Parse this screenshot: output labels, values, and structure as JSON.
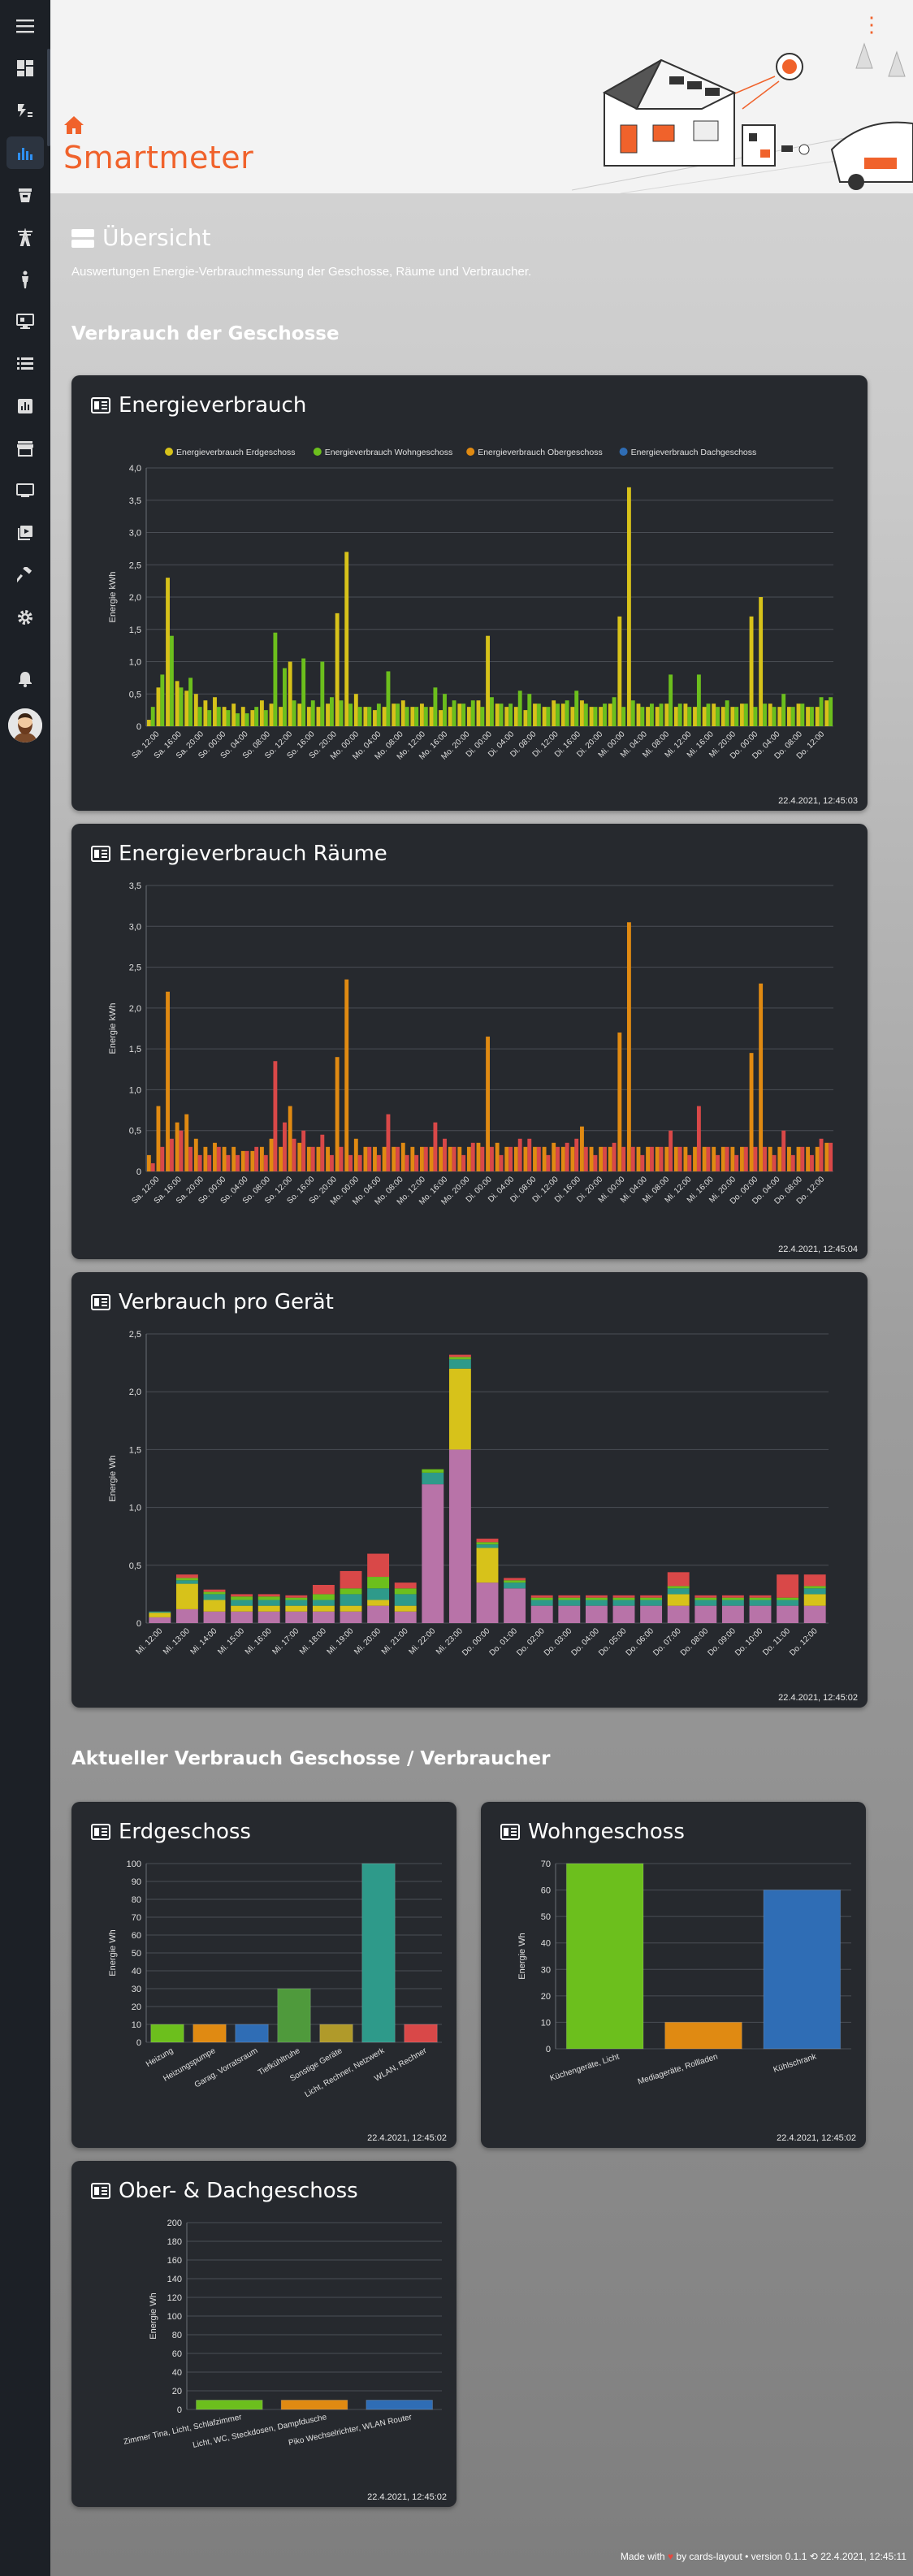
{
  "app": {
    "title": "Smartmeter"
  },
  "sidebar": {
    "items": [
      {
        "icon": "menu-icon"
      },
      {
        "icon": "dashboard-icon"
      },
      {
        "icon": "energy-flow-icon"
      },
      {
        "icon": "chart-bar-icon",
        "active": true
      },
      {
        "icon": "cup-icon"
      },
      {
        "icon": "tower-icon"
      },
      {
        "icon": "person-icon"
      },
      {
        "icon": "monitor-icon"
      },
      {
        "icon": "list-icon"
      },
      {
        "icon": "report-icon"
      },
      {
        "icon": "store-icon"
      },
      {
        "icon": "display-icon"
      },
      {
        "icon": "media-icon"
      },
      {
        "icon": "hammer-icon"
      },
      {
        "icon": "gear-icon"
      },
      {
        "icon": "bell-icon"
      }
    ]
  },
  "overview": {
    "title": "Übersicht",
    "subtitle": "Auswertungen Energie-Verbrauchmessung der Geschosse, Räume und Verbraucher."
  },
  "sections": {
    "floors": "Verbrauch der Geschosse",
    "current": "Aktueller Verbrauch Geschosse / Verbraucher"
  },
  "cards": {
    "energy": {
      "title": "Energieverbrauch",
      "timestamp": "22.4.2021, 12:45:03"
    },
    "rooms": {
      "title": "Energieverbrauch Räume",
      "timestamp": "22.4.2021, 12:45:04"
    },
    "device": {
      "title": "Verbrauch pro Gerät",
      "timestamp": "22.4.2021, 12:45:02"
    },
    "eg": {
      "title": "Erdgeschoss",
      "timestamp": "22.4.2021, 12:45:02"
    },
    "wg": {
      "title": "Wohngeschoss",
      "timestamp": "22.4.2021, 12:45:02"
    },
    "od": {
      "title": "Ober- & Dachgeschoss",
      "timestamp": "22.4.2021, 12:45:02"
    }
  },
  "footer": {
    "made_with": "Made with",
    "by": "by cards-layout • version 0.1.1",
    "timestamp": "22.4.2021, 12:45:11"
  },
  "colors": {
    "accent": "#f0622b",
    "yellow": "#d7c21a",
    "green": "#6cbf1d",
    "orange": "#e08a12",
    "blue": "#2f6db5",
    "red": "#d94848",
    "pink": "#b873a8",
    "teal": "#2e9a8a"
  },
  "chart_data": [
    {
      "id": "energy",
      "type": "bar",
      "stacked": false,
      "ylabel": "Energie kWh",
      "ylim": [
        0,
        4.0
      ],
      "yticks": [
        "0",
        "0,5",
        "1,0",
        "1,5",
        "2,0",
        "2,5",
        "3,0",
        "3,5",
        "4,0"
      ],
      "legend": [
        {
          "name": "Energieverbrauch Erdgeschoss",
          "color": "#d7c21a"
        },
        {
          "name": "Energieverbrauch Wohngeschoss",
          "color": "#6cbf1d"
        },
        {
          "name": "Energieverbrauch Obergeschoss",
          "color": "#e08a12"
        },
        {
          "name": "Energieverbrauch Dachgeschoss",
          "color": "#2f6db5"
        }
      ],
      "legend_position": "top",
      "xticks": [
        "Sa. 12:00",
        "Sa. 16:00",
        "Sa. 20:00",
        "So. 00:00",
        "So. 04:00",
        "So. 08:00",
        "So. 12:00",
        "So. 16:00",
        "So. 20:00",
        "Mo. 00:00",
        "Mo. 04:00",
        "Mo. 08:00",
        "Mo. 12:00",
        "Mo. 16:00",
        "Mo. 20:00",
        "Di. 00:00",
        "Di. 04:00",
        "Di. 08:00",
        "Di. 12:00",
        "Di. 16:00",
        "Di. 20:00",
        "Mi. 00:00",
        "Mi. 04:00",
        "Mi. 08:00",
        "Mi. 12:00",
        "Mi. 16:00",
        "Mi. 20:00",
        "Do. 00:00",
        "Do. 04:00",
        "Do. 08:00",
        "Do. 12:00"
      ],
      "series": [
        {
          "name": "Energieverbrauch Erdgeschoss",
          "values": [
            0.1,
            0.6,
            2.3,
            0.7,
            0.55,
            0.5,
            0.4,
            0.45,
            0.3,
            0.35,
            0.3,
            0.25,
            0.4,
            0.35,
            0.3,
            1.0,
            0.35,
            0.3,
            0.3,
            0.35,
            1.75,
            2.7,
            0.5,
            0.3,
            0.25,
            0.3,
            0.35,
            0.4,
            0.3,
            0.35,
            0.3,
            0.25,
            0.3,
            0.35,
            0.3,
            0.4,
            1.4,
            0.35,
            0.3,
            0.3,
            0.25,
            0.35,
            0.3,
            0.4,
            0.35,
            0.3,
            0.4,
            0.3,
            0.3,
            0.35,
            1.7,
            3.7,
            0.35,
            0.3,
            0.3,
            0.35,
            0.3,
            0.35,
            0.3,
            0.3,
            0.35,
            0.3,
            0.3,
            0.35,
            1.7,
            2.0,
            0.35,
            0.3,
            0.3,
            0.35,
            0.3,
            0.3,
            0.4
          ]
        },
        {
          "name": "Energieverbrauch Wohngeschoss",
          "values": [
            0.3,
            0.8,
            1.4,
            0.6,
            0.75,
            0.3,
            0.25,
            0.3,
            0.25,
            0.2,
            0.2,
            0.3,
            0.25,
            1.45,
            0.9,
            0.4,
            1.05,
            0.4,
            1.0,
            0.45,
            0.4,
            0.35,
            0.3,
            0.3,
            0.35,
            0.85,
            0.35,
            0.3,
            0.3,
            0.3,
            0.6,
            0.5,
            0.4,
            0.35,
            0.4,
            0.3,
            0.45,
            0.35,
            0.35,
            0.55,
            0.5,
            0.35,
            0.3,
            0.35,
            0.4,
            0.55,
            0.35,
            0.3,
            0.35,
            0.45,
            0.3,
            0.4,
            0.3,
            0.35,
            0.35,
            0.8,
            0.35,
            0.3,
            0.8,
            0.35,
            0.3,
            0.4,
            0.3,
            0.35,
            0.3,
            0.35,
            0.3,
            0.5,
            0.3,
            0.35,
            0.3,
            0.45,
            0.45
          ]
        }
      ]
    },
    {
      "id": "rooms",
      "type": "bar",
      "stacked": false,
      "ylabel": "Energie kWh",
      "ylim": [
        0,
        3.5
      ],
      "yticks": [
        "0",
        "0,5",
        "1,0",
        "1,5",
        "2,0",
        "2,5",
        "3,0",
        "3,5"
      ],
      "xticks": [
        "Sa. 12:00",
        "Sa. 16:00",
        "Sa. 20:00",
        "So. 00:00",
        "So. 04:00",
        "So. 08:00",
        "So. 12:00",
        "So. 16:00",
        "So. 20:00",
        "Mo. 00:00",
        "Mo. 04:00",
        "Mo. 08:00",
        "Mo. 12:00",
        "Mo. 16:00",
        "Mo. 20:00",
        "Di. 00:00",
        "Di. 04:00",
        "Di. 08:00",
        "Di. 12:00",
        "Di. 16:00",
        "Di. 20:00",
        "Mi. 00:00",
        "Mi. 04:00",
        "Mi. 08:00",
        "Mi. 12:00",
        "Mi. 16:00",
        "Mi. 20:00",
        "Do. 00:00",
        "Do. 04:00",
        "Do. 08:00",
        "Do. 12:00"
      ],
      "series": [
        {
          "name": "",
          "color": "#e08a12",
          "values": [
            0.2,
            0.8,
            2.2,
            0.6,
            0.7,
            0.4,
            0.3,
            0.35,
            0.3,
            0.3,
            0.25,
            0.25,
            0.3,
            0.4,
            0.3,
            0.8,
            0.35,
            0.3,
            0.3,
            0.3,
            1.4,
            2.35,
            0.4,
            0.3,
            0.3,
            0.3,
            0.3,
            0.35,
            0.3,
            0.3,
            0.3,
            0.3,
            0.3,
            0.3,
            0.3,
            0.35,
            1.65,
            0.35,
            0.3,
            0.3,
            0.3,
            0.3,
            0.3,
            0.35,
            0.3,
            0.3,
            0.55,
            0.3,
            0.3,
            0.3,
            1.7,
            3.05,
            0.3,
            0.3,
            0.3,
            0.3,
            0.3,
            0.3,
            0.3,
            0.3,
            0.3,
            0.3,
            0.3,
            0.3,
            1.45,
            2.3,
            0.3,
            0.3,
            0.3,
            0.3,
            0.3,
            0.3,
            0.35
          ]
        },
        {
          "name": "",
          "color": "#d94848",
          "values": [
            0.1,
            0.3,
            0.4,
            0.5,
            0.3,
            0.2,
            0.2,
            0.3,
            0.2,
            0.2,
            0.25,
            0.3,
            0.2,
            1.35,
            0.6,
            0.4,
            0.5,
            0.3,
            0.45,
            0.2,
            0.3,
            0.2,
            0.2,
            0.3,
            0.2,
            0.7,
            0.3,
            0.2,
            0.2,
            0.3,
            0.6,
            0.4,
            0.3,
            0.2,
            0.35,
            0.3,
            0.3,
            0.2,
            0.3,
            0.4,
            0.4,
            0.3,
            0.2,
            0.3,
            0.35,
            0.4,
            0.3,
            0.2,
            0.3,
            0.35,
            0.3,
            0.3,
            0.2,
            0.3,
            0.3,
            0.5,
            0.3,
            0.2,
            0.8,
            0.3,
            0.2,
            0.3,
            0.2,
            0.3,
            0.3,
            0.3,
            0.2,
            0.5,
            0.2,
            0.3,
            0.2,
            0.4,
            0.35
          ]
        }
      ]
    },
    {
      "id": "device",
      "type": "bar",
      "stacked": true,
      "ylabel": "Energie Wh",
      "ylim": [
        0,
        2.5
      ],
      "yticks": [
        "0",
        "0,5",
        "1,0",
        "1,5",
        "2,0",
        "2,5"
      ],
      "categories": [
        "Mi. 12:00",
        "Mi. 13:00",
        "Mi. 14:00",
        "Mi. 15:00",
        "Mi. 16:00",
        "Mi. 17:00",
        "Mi. 18:00",
        "Mi. 19:00",
        "Mi. 20:00",
        "Mi. 21:00",
        "Mi. 22:00",
        "Mi. 23:00",
        "Do. 00:00",
        "Do. 01:00",
        "Do. 02:00",
        "Do. 03:00",
        "Do. 04:00",
        "Do. 05:00",
        "Do. 06:00",
        "Do. 07:00",
        "Do. 08:00",
        "Do. 09:00",
        "Do. 10:00",
        "Do. 11:00",
        "Do. 12:00"
      ],
      "series": [
        {
          "name": "",
          "color": "#b873a8",
          "values": [
            0.05,
            0.12,
            0.1,
            0.1,
            0.1,
            0.1,
            0.1,
            0.1,
            0.15,
            0.1,
            1.2,
            1.5,
            0.35,
            0.3,
            0.15,
            0.15,
            0.15,
            0.15,
            0.15,
            0.15,
            0.15,
            0.15,
            0.15,
            0.15,
            0.15
          ]
        },
        {
          "name": "",
          "color": "#d7c21a",
          "values": [
            0.04,
            0.22,
            0.1,
            0.05,
            0.05,
            0.05,
            0.05,
            0.05,
            0.05,
            0.05,
            0.0,
            0.7,
            0.3,
            0.0,
            0.0,
            0.0,
            0.0,
            0.0,
            0.0,
            0.1,
            0.0,
            0.0,
            0.0,
            0.0,
            0.1
          ]
        },
        {
          "name": "",
          "color": "#2e9a8a",
          "values": [
            0.01,
            0.03,
            0.05,
            0.05,
            0.05,
            0.05,
            0.05,
            0.1,
            0.1,
            0.1,
            0.1,
            0.08,
            0.03,
            0.05,
            0.05,
            0.05,
            0.05,
            0.05,
            0.05,
            0.05,
            0.05,
            0.05,
            0.05,
            0.05,
            0.05
          ]
        },
        {
          "name": "",
          "color": "#6cbf1d",
          "values": [
            0.0,
            0.02,
            0.02,
            0.03,
            0.03,
            0.02,
            0.05,
            0.05,
            0.1,
            0.05,
            0.03,
            0.02,
            0.02,
            0.02,
            0.02,
            0.02,
            0.02,
            0.02,
            0.02,
            0.02,
            0.02,
            0.02,
            0.02,
            0.02,
            0.02
          ]
        },
        {
          "name": "",
          "color": "#d94848",
          "values": [
            0.0,
            0.03,
            0.02,
            0.02,
            0.02,
            0.02,
            0.08,
            0.15,
            0.2,
            0.05,
            0.0,
            0.02,
            0.03,
            0.02,
            0.02,
            0.02,
            0.02,
            0.02,
            0.02,
            0.12,
            0.02,
            0.02,
            0.02,
            0.2,
            0.1
          ]
        }
      ]
    },
    {
      "id": "eg",
      "type": "bar",
      "ylabel": "Energie Wh",
      "ylim": [
        0,
        100
      ],
      "yticks": [
        "0",
        "10",
        "20",
        "30",
        "40",
        "50",
        "60",
        "70",
        "80",
        "90",
        "100"
      ],
      "categories": [
        "Heizung",
        "Heizungspumpe",
        "Garag. Vorratsraum",
        "Tiefkühltruhe",
        "Sonstige Geräte",
        "Licht, Rechner, Netzwerk",
        "WLAN, Rechner"
      ],
      "values": [
        10,
        10,
        10,
        30,
        10,
        100,
        10
      ],
      "colors": [
        "#6cbf1d",
        "#e08a12",
        "#2f6db5",
        "#4f9a3c",
        "#b09a2a",
        "#2e9a8a",
        "#d94848"
      ]
    },
    {
      "id": "wg",
      "type": "bar",
      "ylabel": "Energie Wh",
      "ylim": [
        0,
        70
      ],
      "yticks": [
        "0",
        "10",
        "20",
        "30",
        "40",
        "50",
        "60",
        "70"
      ],
      "categories": [
        "Küchengeräte, Licht",
        "Mediageräte, Rollladen",
        "Kühlschrank"
      ],
      "values": [
        70,
        10,
        60
      ],
      "colors": [
        "#6cbf1d",
        "#e08a12",
        "#2f6db5"
      ]
    },
    {
      "id": "od",
      "type": "bar",
      "ylabel": "Energie Wh",
      "ylim": [
        0,
        200
      ],
      "yticks": [
        "0",
        "20",
        "40",
        "60",
        "80",
        "100",
        "120",
        "140",
        "160",
        "180",
        "200"
      ],
      "categories": [
        "Zimmer Tina, Licht, Schlafzimmer",
        "Licht, WC, Steckdosen, Dampfdusche",
        "Piko Wechselrichter, WLAN Router"
      ],
      "values": [
        10,
        10,
        10
      ],
      "colors": [
        "#6cbf1d",
        "#e08a12",
        "#2f6db5"
      ]
    }
  ]
}
